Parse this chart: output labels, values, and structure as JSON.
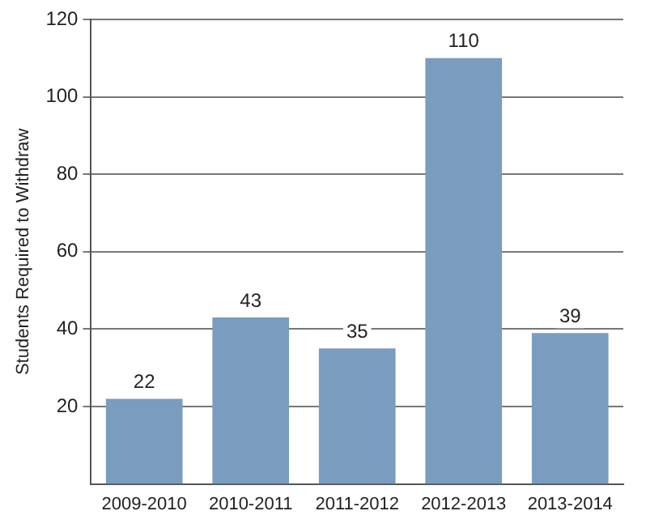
{
  "chart_data": {
    "type": "bar",
    "ylabel": "Students Required to Withdraw",
    "categories": [
      "2009-2010",
      "2010-2011",
      "2011-2012",
      "2012-2013",
      "2013-2014"
    ],
    "values": [
      22,
      43,
      35,
      110,
      39
    ],
    "color": "#7a9cbf",
    "ylim": [
      0,
      120
    ],
    "yticks": [
      20,
      40,
      60,
      80,
      100,
      120
    ],
    "grid": "y",
    "data_labels": true
  }
}
